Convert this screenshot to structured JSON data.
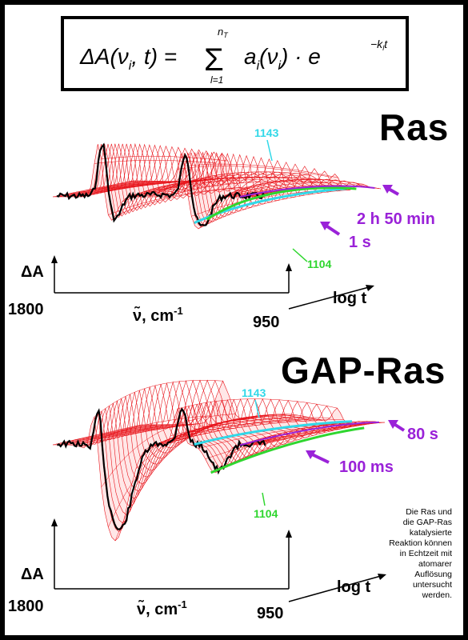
{
  "formula": {
    "lhs": "ΔA(ν",
    "lhs_sub": "i",
    "lhs_tail": ", t) =",
    "sum_top": "n",
    "sum_top_sub": "T",
    "sum_bottom": "l=1",
    "term": "a",
    "term_sub": "i",
    "term_arg": "(ν",
    "term_arg_sub": "i",
    "term_tail": ") · e",
    "exponent": "−k",
    "exponent_sub": "l",
    "exponent_tail": "t"
  },
  "panels": [
    {
      "title": "Ras",
      "label_top": "1143",
      "label_bottom": "1104",
      "time_late": "2 h 50 min",
      "time_early": "1 s",
      "y_axis": "ΔA",
      "x_left": "1800",
      "x_right": "950",
      "x_label_nu": "ν̃",
      "x_label_unit": ",  cm",
      "x_label_exp": "-1",
      "z_label": "log t"
    },
    {
      "title": "GAP-Ras",
      "label_top": "1143",
      "label_bottom": "1104",
      "time_late": "80 s",
      "time_early": "100 ms",
      "y_axis": "ΔA",
      "x_left": "1800",
      "x_right": "950",
      "x_label_nu": "ν̃",
      "x_label_unit": ",  cm",
      "x_label_exp": "-1",
      "z_label": "log t"
    }
  ],
  "caption": [
    "Die Ras und",
    "die GAP-Ras",
    "katalysierte",
    "Reaktion können",
    "in Echtzeit mit",
    "atomarer",
    "Auflösung",
    "untersucht",
    "werden."
  ],
  "colors": {
    "mesh": "#e8141b",
    "mesh_fill": "#ffd4d4",
    "cyan": "#31d8e8",
    "green": "#2fd62f",
    "purple": "#9a22d8",
    "black": "#000000"
  }
}
